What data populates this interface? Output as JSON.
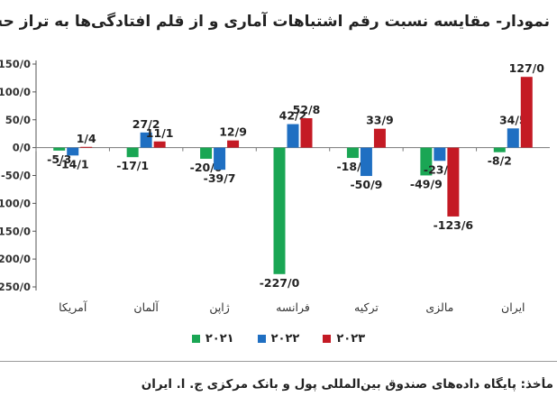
{
  "title": "نمودار- مقایسه نسبت رقم اشتباهات آماری و از قلم افتادگی‌ها به تراز حساب جاری برای کشورهای منتخب",
  "source": "مأخذ: پایگاه داده‌های صندوق بین‌المللی پول و بانک مرکزی ج. ا. ایران",
  "colors": {
    "2021": "#1aa654",
    "2022": "#1f6fc2",
    "2023": "#c41a24"
  },
  "chart_data": {
    "type": "bar",
    "categories": [
      "آمریکا",
      "آلمان",
      "ژاپن",
      "فرانسه",
      "ترکیه",
      "مالزی",
      "ایران"
    ],
    "series": [
      {
        "name": "۲۰۲۱",
        "values": [
          -5.3,
          -17.1,
          -20.0,
          -227.0,
          -18.5,
          -49.9,
          -8.2
        ],
        "labels": [
          "-5/3",
          "-17/1",
          "-20/0",
          "-227/0",
          "-18/5",
          "-49/9",
          "-8/2"
        ]
      },
      {
        "name": "۲۰۲۲",
        "values": [
          -14.1,
          27.2,
          -39.7,
          42.2,
          -50.9,
          -23.7,
          34.5
        ],
        "labels": [
          "-14/1",
          "27/2",
          "-39/7",
          "42/2",
          "-50/9",
          "-23/7",
          "34/5"
        ]
      },
      {
        "name": "۲۰۲۳",
        "values": [
          1.4,
          11.1,
          12.9,
          52.8,
          33.9,
          -123.6,
          127.0
        ],
        "labels": [
          "1/4",
          "11/1",
          "12/9",
          "52/8",
          "33/9",
          "-123/6",
          "127/0"
        ]
      }
    ],
    "ylim": [
      -250,
      150
    ],
    "yticks": [
      150,
      100,
      50,
      0,
      -50,
      -100,
      -150,
      -200,
      -250
    ],
    "ytick_labels": [
      "150/0",
      "100/0",
      "50/0",
      "0/0",
      "-50/0",
      "-100/0",
      "-150/0",
      "-200/0",
      "-250/0"
    ],
    "grid": false,
    "legend_position": "bottom"
  }
}
